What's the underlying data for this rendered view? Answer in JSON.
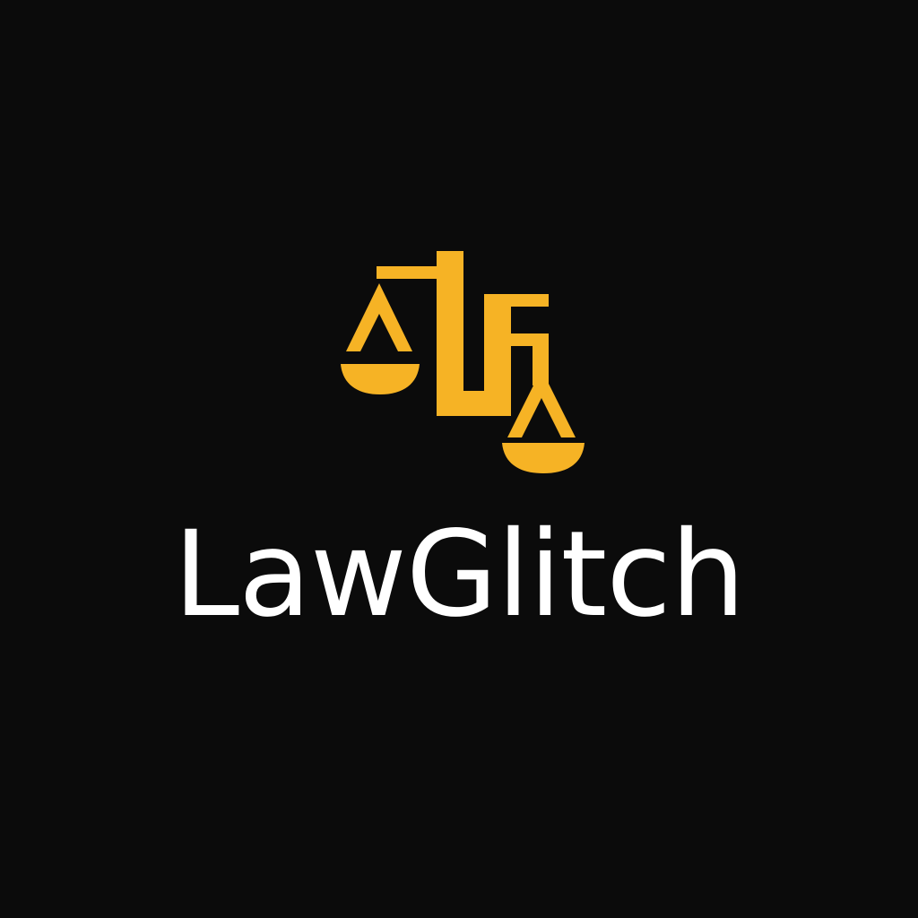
{
  "brand": {
    "name": "LawGlitch",
    "icon": "scales-of-justice-icon"
  },
  "colors": {
    "background": "#0b0b0b",
    "accent": "#f6b325",
    "text": "#ffffff"
  }
}
